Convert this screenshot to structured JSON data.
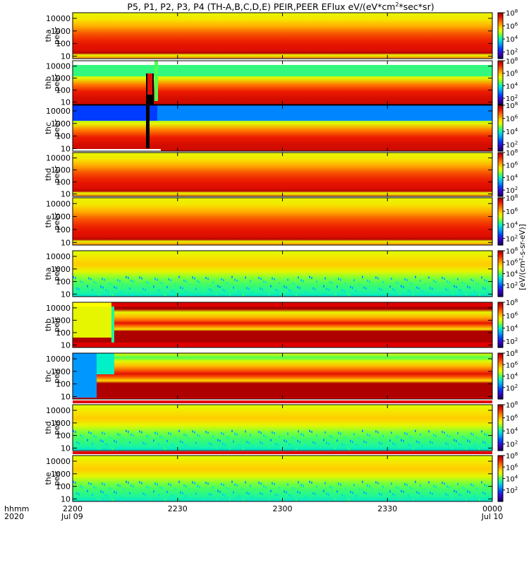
{
  "chart_data": {
    "type": "heatmap",
    "title": "P5, P1, P2, P3, P4 (TH-A,B,C,D,E) PEIR,PEER EFlux eV/(eV*cm^2*sec*sr)",
    "title_parts": [
      "P5, P1, P2, P3, P4 (TH-A,B,C,D,E) PEIR,PEER EFlux eV/(eV*cm",
      "2",
      "*sec*sr)"
    ],
    "xaxis": {
      "ticks": [
        "2200",
        "2230",
        "2300",
        "2330",
        "0000"
      ],
      "tick_hours": [
        22.0,
        22.5,
        23.0,
        23.5,
        24.0
      ],
      "range_hours": [
        22.0,
        24.0
      ],
      "row_label": [
        "hhmm",
        "2020"
      ],
      "dates": [
        {
          "hour": 22.0,
          "text": "Jul 09"
        },
        {
          "hour": 24.0,
          "text": "Jul 10"
        }
      ]
    },
    "yaxis": {
      "scale": "log",
      "ticks": [
        "10",
        "100",
        "1000",
        "10000"
      ],
      "tick_values": [
        10,
        100,
        1000,
        10000
      ]
    },
    "colorbar": {
      "scale": "log",
      "label": "[eV/(cm2-s-sr-eV)] (!)",
      "label_rotated": "[eV/(cm²-s-sr-eV)]",
      "range_exp": [
        2,
        8
      ],
      "main_exp": [
        2,
        4,
        6,
        8
      ],
      "ticks": [
        {
          "base": "10",
          "exp": "2"
        },
        {
          "base": "10",
          "exp": "4"
        },
        {
          "base": "10",
          "exp": "6"
        },
        {
          "base": "10",
          "exp": "8"
        }
      ]
    },
    "panels": [
      {
        "probe": "tha",
        "species": "peer",
        "label1": "tha",
        "label2": "peer",
        "kind": "e",
        "cb_min": 1,
        "cb_max": 8
      },
      {
        "probe": "thb",
        "species": "peer",
        "label1": "thb",
        "label2": "peer",
        "kind": "e_b",
        "cb_min": 1,
        "cb_max": 8
      },
      {
        "probe": "thc",
        "species": "peer",
        "label1": "thc",
        "label2": "peer",
        "kind": "e_c",
        "cb_min": 1,
        "cb_max": 8
      },
      {
        "probe": "thd",
        "species": "peer",
        "label1": "thd",
        "label2": "peer",
        "kind": "e",
        "cb_min": 1,
        "cb_max": 8
      },
      {
        "probe": "the",
        "species": "peer",
        "label1": "the",
        "label2": "peer",
        "kind": "e",
        "cb_min": 1,
        "cb_max": 8
      },
      {
        "probe": "tha",
        "species": "peir",
        "label1": "tha",
        "label2": "peir",
        "kind": "i",
        "cb_min": 0,
        "cb_max": 8
      },
      {
        "probe": "thb",
        "species": "peir",
        "label1": "thb",
        "label2": "peir",
        "kind": "i_b",
        "cb_min": 1,
        "cb_max": 8
      },
      {
        "probe": "thc",
        "species": "peir",
        "label1": "thc",
        "label2": "peir",
        "kind": "i_c",
        "cb_min": 0,
        "cb_max": 8
      },
      {
        "probe": "thd",
        "species": "peir",
        "label1": "thd",
        "label2": "peir",
        "kind": "i",
        "cb_min": 1,
        "cb_max": 8
      },
      {
        "probe": "the",
        "species": "peir",
        "label1": "the",
        "label2": "peir",
        "kind": "i",
        "cb_min": 0,
        "cb_max": 8
      }
    ],
    "grid": false,
    "legend": "none"
  }
}
